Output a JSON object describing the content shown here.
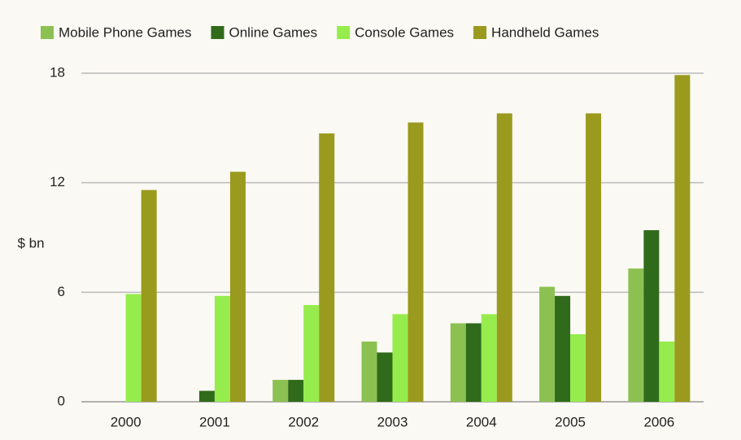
{
  "chart_data": {
    "type": "bar",
    "y_label": "$ bn",
    "categories": [
      "2000",
      "2001",
      "2002",
      "2003",
      "2004",
      "2005",
      "2006"
    ],
    "series": [
      {
        "name": "Mobile Phone Games",
        "color": "#8cc152",
        "values": [
          0,
          0,
          1.2,
          3.3,
          4.3,
          6.3,
          7.3
        ]
      },
      {
        "name": "Online Games",
        "color": "#2f6b1b",
        "values": [
          0,
          0.6,
          1.2,
          2.7,
          4.3,
          5.8,
          9.4
        ]
      },
      {
        "name": "Console Games",
        "color": "#96ec4c",
        "values": [
          5.9,
          5.8,
          5.3,
          4.8,
          4.8,
          3.7,
          3.3
        ]
      },
      {
        "name": "Handheld Games",
        "color": "#9a9a1e",
        "values": [
          11.6,
          12.6,
          14.7,
          15.3,
          15.8,
          15.8,
          17.9
        ]
      }
    ],
    "ylim": [
      0,
      18
    ],
    "yticks": [
      0,
      6,
      12,
      18
    ],
    "grid": true
  }
}
